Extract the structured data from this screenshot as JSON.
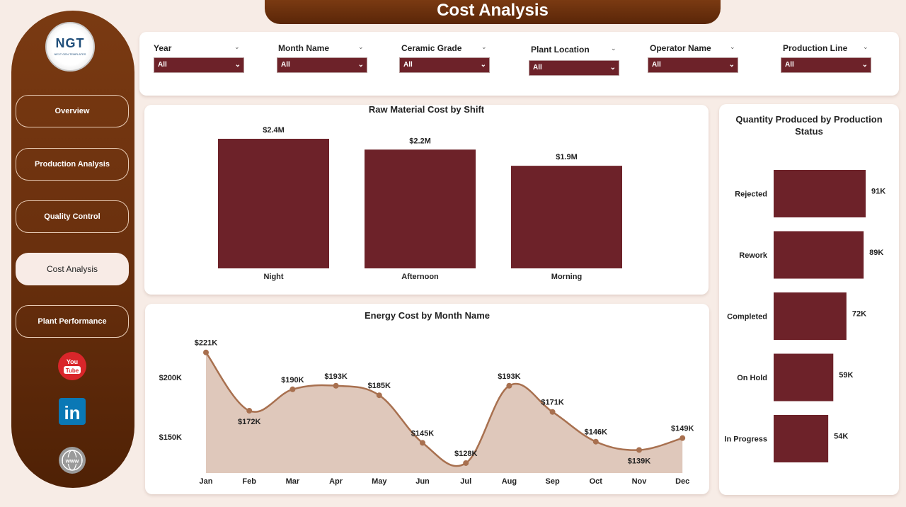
{
  "page": {
    "title": "Cost Analysis"
  },
  "sidebar": {
    "logo_text": "NGT",
    "logo_sub": "NEXT GEN TEMPLATES",
    "items": [
      {
        "label": "Overview",
        "active": false
      },
      {
        "label": "Production Analysis",
        "active": false
      },
      {
        "label": "Quality Control",
        "active": false
      },
      {
        "label": "Cost Analysis",
        "active": true
      },
      {
        "label": "Plant Performance",
        "active": false
      }
    ],
    "youtube": {
      "line1": "You",
      "line2": "Tube"
    },
    "linkedin": {
      "label": "in"
    },
    "web": {
      "label": "www"
    }
  },
  "filters": [
    {
      "label": "Year",
      "value": "All"
    },
    {
      "label": "Month Name",
      "value": "All"
    },
    {
      "label": "Ceramic Grade",
      "value": "All"
    },
    {
      "label": "Plant Location",
      "value": "All"
    },
    {
      "label": "Operator Name",
      "value": "All"
    },
    {
      "label": "Production Line",
      "value": "All"
    }
  ],
  "colors": {
    "accent": "#6d2229",
    "brown": "#6a300e",
    "line": "#a8704f",
    "area": "#dfc8bb"
  },
  "chart_data": [
    {
      "type": "bar",
      "title": "Raw Material Cost by Shift",
      "categories": [
        "Night",
        "Afternoon",
        "Morning"
      ],
      "values": [
        2.4,
        2.2,
        1.9
      ],
      "data_labels": [
        "$2.4M",
        "$2.2M",
        "$1.9M"
      ],
      "unit": "$M",
      "ylim": [
        0,
        2.4
      ]
    },
    {
      "type": "area",
      "title": "Energy Cost by Month Name",
      "categories": [
        "Jan",
        "Feb",
        "Mar",
        "Apr",
        "May",
        "Jun",
        "Jul",
        "Aug",
        "Sep",
        "Oct",
        "Nov",
        "Dec"
      ],
      "values": [
        221,
        172,
        190,
        193,
        185,
        145,
        128,
        193,
        171,
        146,
        139,
        149
      ],
      "data_labels": [
        "$221K",
        "$172K",
        "$190K",
        "$193K",
        "$185K",
        "$145K",
        "$128K",
        "$193K",
        "$171K",
        "$146K",
        "$139K",
        "$149K"
      ],
      "label_side": [
        "above",
        "below",
        "above",
        "above",
        "above",
        "above",
        "above",
        "above",
        "above",
        "above",
        "below",
        "above"
      ],
      "y_ticks": [
        150,
        200
      ],
      "y_tick_labels": [
        "$150K",
        "$200K"
      ],
      "unit": "$K",
      "ylim": [
        120,
        225
      ]
    },
    {
      "type": "bar",
      "orientation": "horizontal",
      "title": "Quantity Produced by Production Status",
      "title_lines": [
        "Quantity Produced by Production",
        "Status"
      ],
      "categories": [
        "Rejected",
        "Rework",
        "Completed",
        "On Hold",
        "In Progress"
      ],
      "values": [
        91,
        89,
        72,
        59,
        54
      ],
      "data_labels": [
        "91K",
        "89K",
        "72K",
        "59K",
        "54K"
      ],
      "unit": "K",
      "ylim": [
        0,
        91
      ]
    }
  ]
}
